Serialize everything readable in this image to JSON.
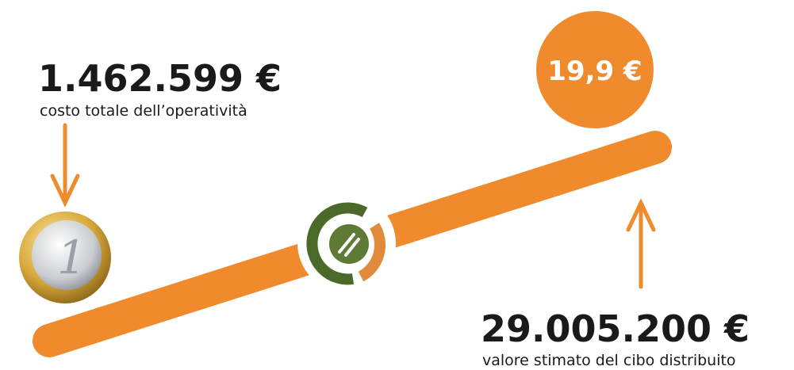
{
  "cost": {
    "amount": "1.462.599 €",
    "caption": "costo totale dell’operatività"
  },
  "ratio": {
    "label": "19,9 €"
  },
  "value": {
    "amount": "29.005.200 €",
    "caption": "valore stimato del cibo distribuito"
  }
}
